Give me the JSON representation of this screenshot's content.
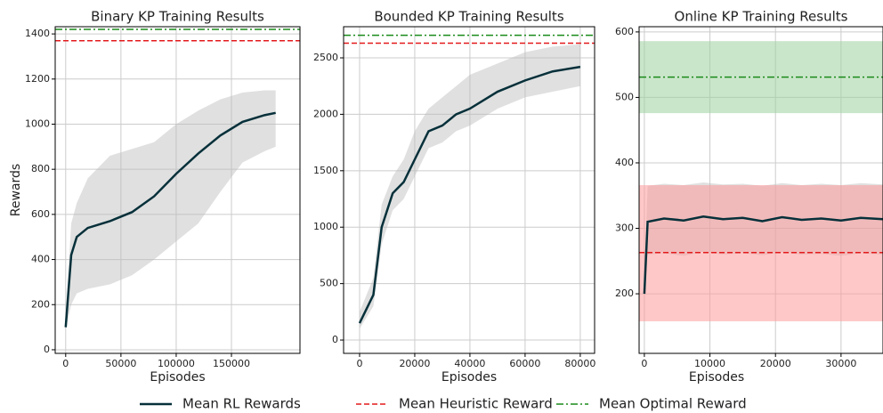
{
  "chart_data": [
    {
      "type": "line",
      "title": "Binary KP Training Results",
      "xlabel": "Episodes",
      "ylabel": "Rewards",
      "xlim": [
        -9500,
        212000
      ],
      "ylim": [
        -16,
        1432
      ],
      "xticks": [
        0,
        50000,
        100000,
        150000
      ],
      "yticks": [
        0,
        200,
        400,
        600,
        800,
        1000,
        1200,
        1400
      ],
      "grid": true,
      "series": [
        {
          "name": "Mean RL Rewards",
          "color": "#06303a",
          "x": [
            0,
            5000,
            10000,
            20000,
            40000,
            60000,
            80000,
            100000,
            120000,
            140000,
            160000,
            180000,
            190000
          ],
          "values": [
            100,
            420,
            500,
            540,
            570,
            610,
            680,
            780,
            870,
            950,
            1010,
            1040,
            1050
          ],
          "band_lower": [
            90,
            200,
            250,
            270,
            290,
            330,
            400,
            480,
            560,
            700,
            830,
            880,
            900
          ],
          "band_upper": [
            150,
            560,
            650,
            760,
            860,
            890,
            920,
            1000,
            1060,
            1110,
            1140,
            1150,
            1150
          ]
        },
        {
          "name": "Mean Heuristic Reward",
          "color": "#e31a1c",
          "value": 1370
        },
        {
          "name": "Mean Optimal Reward",
          "color": "#1a8a1a",
          "value": 1420
        }
      ]
    },
    {
      "type": "line",
      "title": "Bounded KP Training Results",
      "xlabel": "Episodes",
      "xlim": [
        -5800,
        85200
      ],
      "ylim": [
        -118,
        2776
      ],
      "xticks": [
        0,
        20000,
        40000,
        60000,
        80000
      ],
      "yticks": [
        0,
        500,
        1000,
        1500,
        2000,
        2500
      ],
      "grid": true,
      "series": [
        {
          "name": "Mean RL Rewards",
          "color": "#06303a",
          "x": [
            0,
            5000,
            8000,
            12000,
            16000,
            20000,
            25000,
            30000,
            35000,
            40000,
            50000,
            60000,
            70000,
            80000
          ],
          "values": [
            150,
            400,
            1000,
            1300,
            1400,
            1600,
            1850,
            1900,
            2000,
            2050,
            2200,
            2300,
            2380,
            2420
          ],
          "band_lower": [
            100,
            300,
            850,
            1150,
            1250,
            1450,
            1700,
            1750,
            1850,
            1900,
            2050,
            2150,
            2200,
            2250
          ],
          "band_upper": [
            250,
            550,
            1200,
            1450,
            1600,
            1850,
            2050,
            2150,
            2250,
            2350,
            2450,
            2550,
            2600,
            2620
          ]
        },
        {
          "name": "Mean Heuristic Reward",
          "color": "#e31a1c",
          "value": 2630
        },
        {
          "name": "Mean Optimal Reward",
          "color": "#1a8a1a",
          "value": 2700
        }
      ]
    },
    {
      "type": "line",
      "title": "Online KP Training Results",
      "xlabel": "Episodes",
      "xlim": [
        -800,
        36400
      ],
      "ylim": [
        109,
        608
      ],
      "xticks": [
        0,
        10000,
        20000,
        30000
      ],
      "yticks": [
        200,
        300,
        400,
        500,
        600
      ],
      "grid": true,
      "series": [
        {
          "name": "Mean RL Rewards",
          "color": "#06303a",
          "x": [
            0,
            500,
            3000,
            6000,
            9000,
            12000,
            15000,
            18000,
            21000,
            24000,
            27000,
            30000,
            33000,
            36400
          ],
          "values": [
            200,
            310,
            315,
            312,
            318,
            314,
            316,
            311,
            317,
            313,
            315,
            312,
            316,
            314
          ],
          "band_lower": [
            190,
            260,
            262,
            258,
            264,
            260,
            262,
            259,
            263,
            260,
            261,
            258,
            262,
            260
          ],
          "band_upper": [
            220,
            365,
            368,
            366,
            370,
            367,
            368,
            365,
            369,
            366,
            368,
            366,
            369,
            367
          ]
        },
        {
          "name": "Mean Heuristic Reward",
          "color": "#e31a1c",
          "value": 263,
          "band": [
            158,
            366
          ],
          "band_color": "#ff9a9a"
        },
        {
          "name": "Mean Optimal Reward",
          "color": "#1a8a1a",
          "value": 531,
          "band": [
            476,
            586
          ],
          "band_color": "#9fd29f"
        }
      ]
    }
  ]
}
